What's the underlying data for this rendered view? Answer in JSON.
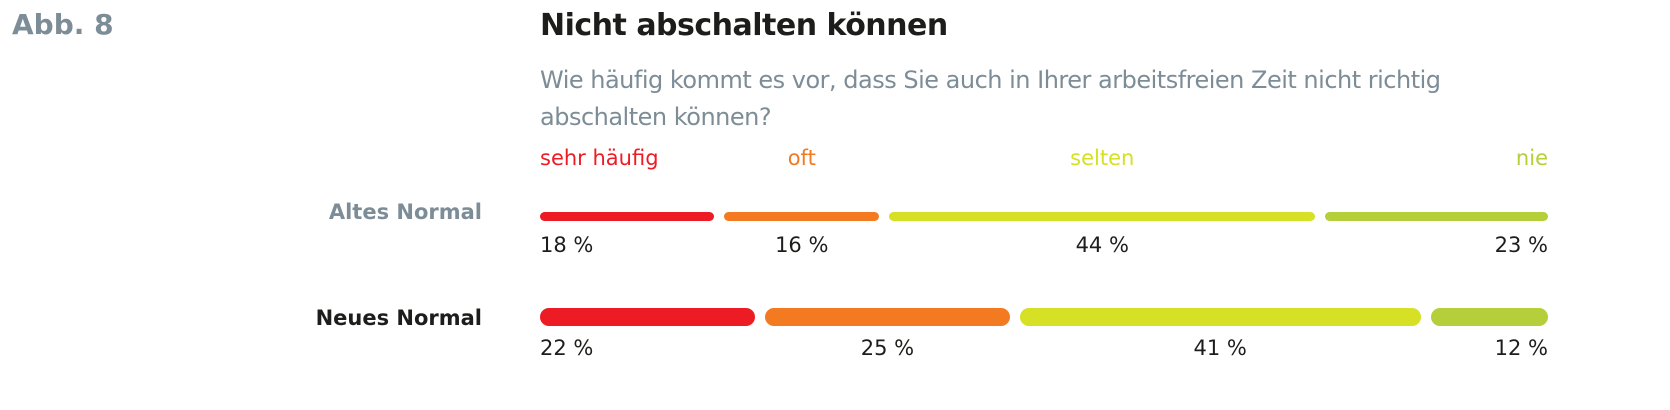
{
  "figure_label": "Abb. 8",
  "chart_data": {
    "type": "bar",
    "orientation": "horizontal-stacked",
    "title": "Nicht abschalten können",
    "subtitle": "Wie häufig kommt es vor, dass Sie auch in Ihrer arbeitsfreien Zeit nicht richtig abschalten können?",
    "categories": [
      "sehr häufig",
      "oft",
      "selten",
      "nie"
    ],
    "colors": [
      "#ed1c24",
      "#f37a21",
      "#d6e024",
      "#b4cf3a"
    ],
    "series": [
      {
        "name": "Altes Normal",
        "values": [
          18,
          16,
          44,
          23
        ],
        "labels": [
          "18 %",
          "16 %",
          "44 %",
          "23 %"
        ]
      },
      {
        "name": "Neues Normal",
        "values": [
          22,
          25,
          41,
          12
        ],
        "labels": [
          "22 %",
          "25 %",
          "41 %",
          "12 %"
        ]
      }
    ],
    "unit": "%"
  }
}
